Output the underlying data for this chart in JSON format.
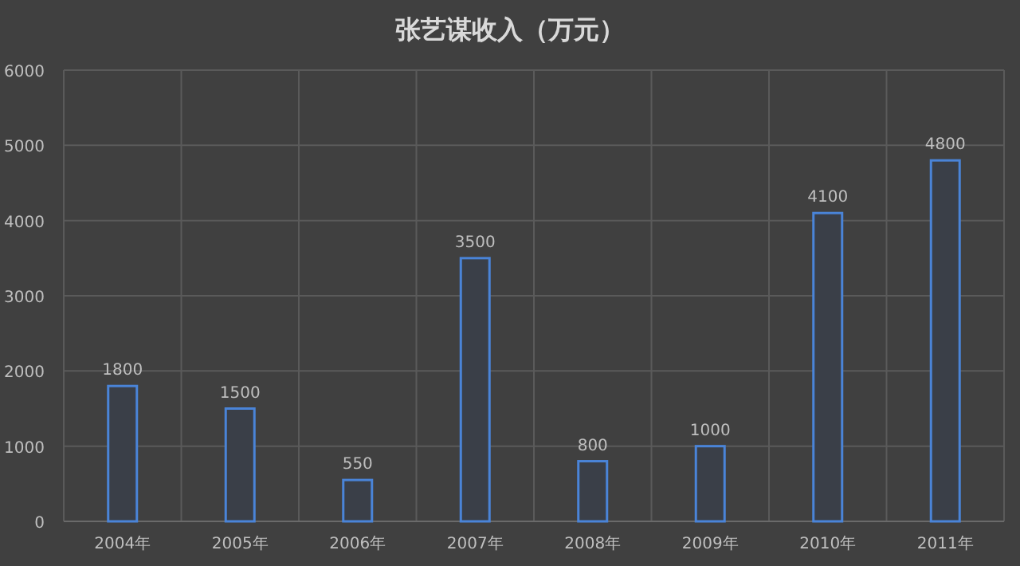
{
  "chart_data": {
    "type": "bar",
    "title": "张艺谋收入（万元）",
    "categories": [
      "2004年",
      "2005年",
      "2006年",
      "2007年",
      "2008年",
      "2009年",
      "2010年",
      "2011年"
    ],
    "values": [
      1800,
      1500,
      550,
      3500,
      800,
      1000,
      4100,
      4800
    ],
    "color": "#4a84d8",
    "ylim": [
      0,
      6000
    ],
    "yticks": [
      0,
      1000,
      2000,
      3000,
      4000,
      5000,
      6000
    ],
    "grid": true,
    "data_labels": true
  }
}
